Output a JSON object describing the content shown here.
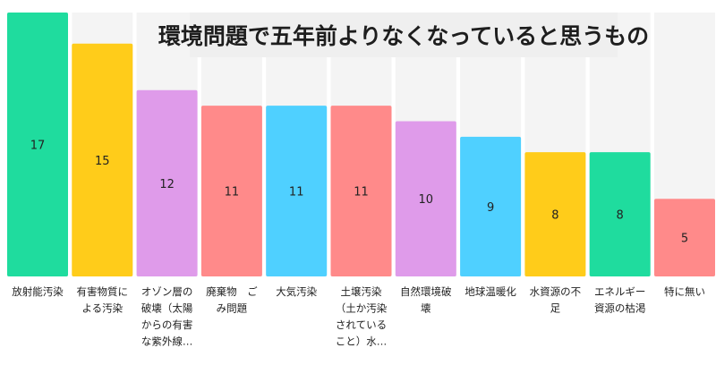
{
  "chart_data": {
    "type": "bar",
    "title": "環境問題で五年前よりなくなっていると思うもの",
    "xlabel": "",
    "ylabel": "",
    "ylim": [
      0,
      17
    ],
    "grid": false,
    "legend": "none",
    "categories": [
      [
        "放射能汚染"
      ],
      [
        "有害物質に",
        "よる汚染"
      ],
      [
        "オゾン層の",
        "破壊（太陽",
        "からの有害",
        "な紫外線…"
      ],
      [
        "廃棄物　ご",
        "み問題"
      ],
      [
        "大気汚染"
      ],
      [
        "土壌汚染",
        "（土か汚染",
        "されている",
        "こと）水…"
      ],
      [
        "自然環境破",
        "壊"
      ],
      [
        "地球温暖化"
      ],
      [
        "水資源の不",
        "足"
      ],
      [
        "エネルギー",
        "資源の枯渇"
      ],
      [
        "特に無い"
      ]
    ],
    "values": [
      17,
      15,
      12,
      11,
      11,
      11,
      10,
      9,
      8,
      8,
      5
    ],
    "colors": [
      "#1fdc9e",
      "#ffcc1a",
      "#df9bea",
      "#ff8a8a",
      "#4fd0ff",
      "#ff8a8a",
      "#df9bea",
      "#4fd0ff",
      "#ffcc1a",
      "#1fdc9e",
      "#ff8a8a"
    ]
  }
}
